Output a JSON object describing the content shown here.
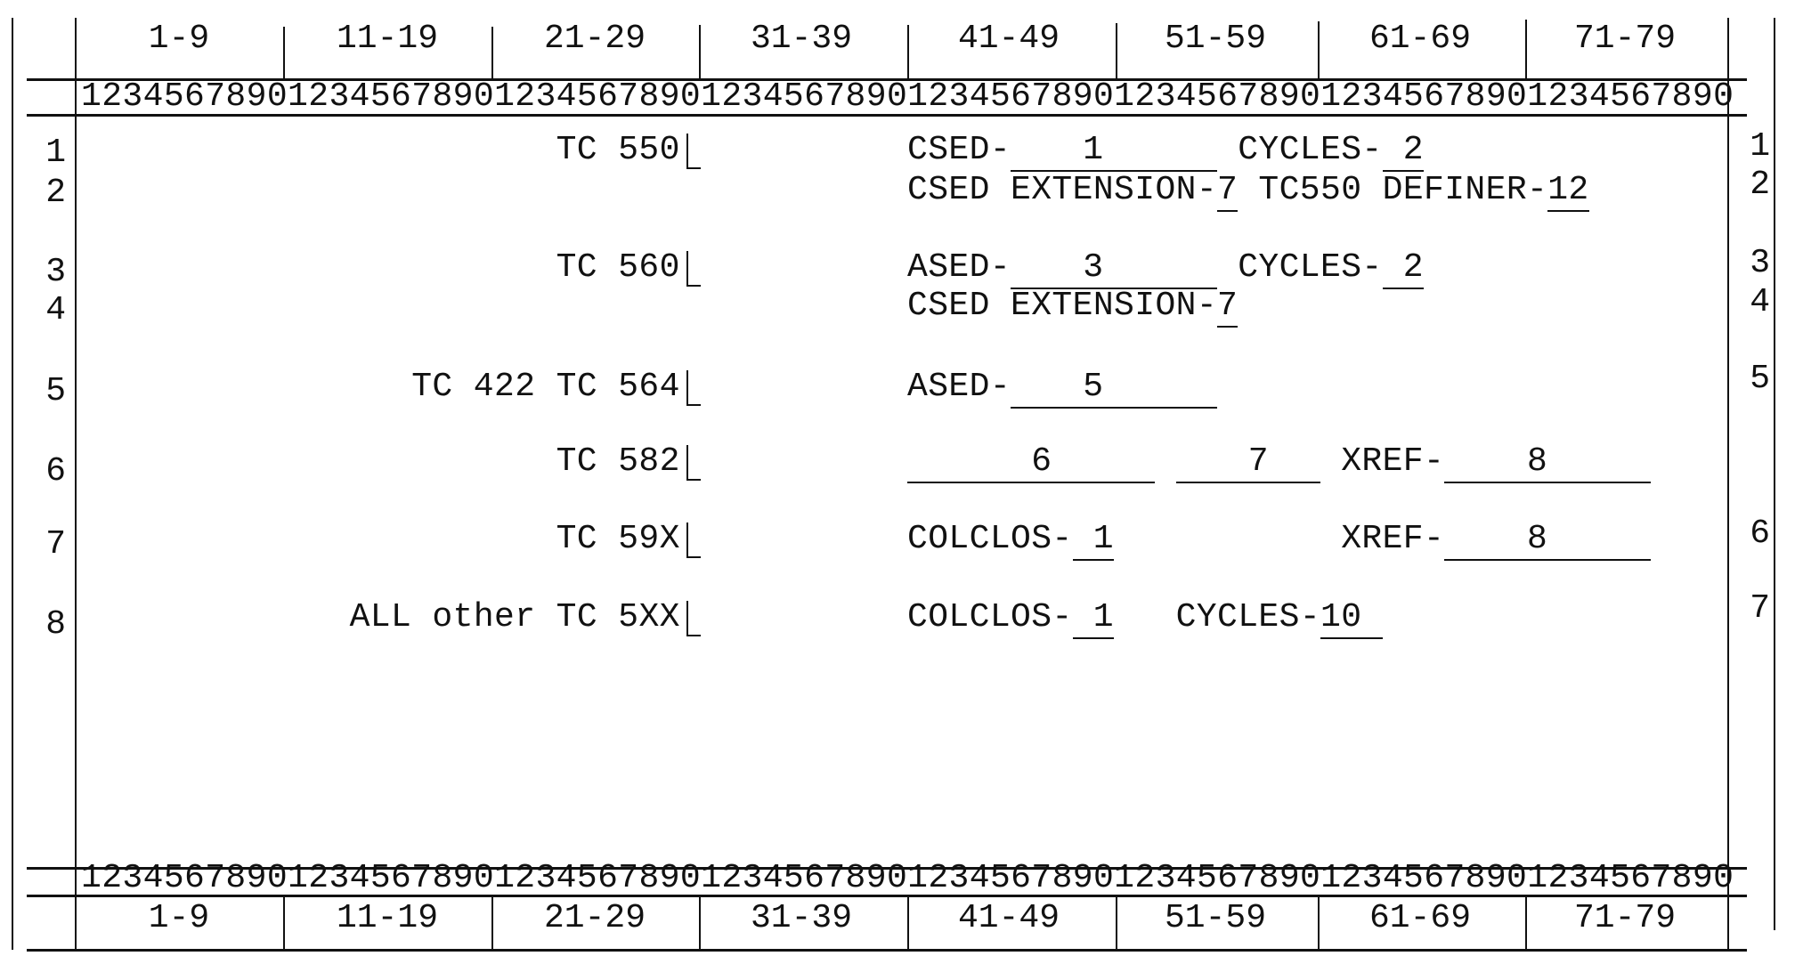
{
  "ruler": {
    "groups": [
      "1-9",
      "11-19",
      "21-29",
      "31-39",
      "41-49",
      "51-59",
      "61-69",
      "71-79"
    ],
    "digits": "12345678901234567890123456789012345678901234567890123456789012345678901234567890"
  },
  "rows": [
    {
      "left_num": "1",
      "label": "TC 550",
      "csed_label": "CSED-",
      "csed_value": "1",
      "cycles_label": "CYCLES-",
      "cycles_value": "2"
    },
    {
      "left_num": "2",
      "ext_label": "CSED EXTENSION-",
      "ext_value": "7",
      "definer_label": "TC550 DEFINER-",
      "definer_value": "12"
    },
    {
      "left_num": "3",
      "label": "TC 560",
      "ased_label": "ASED-",
      "ased_value": "3",
      "cycles_label": "CYCLES-",
      "cycles_value": "2"
    },
    {
      "left_num": "4",
      "ext_label": "CSED EXTENSION-",
      "ext_value": "7"
    },
    {
      "left_num": "5",
      "label": "TC 422 TC 564",
      "ased_label": "ASED-",
      "ased_value": "5"
    },
    {
      "left_num": "6",
      "label": "TC 582",
      "field1_value": "6",
      "field2_value": "7",
      "xref_label": "XREF-",
      "xref_value": "8"
    },
    {
      "left_num": "7",
      "label": "TC 59X",
      "colclos_label": "COLCLOS-",
      "colclos_value": "1",
      "xref_label": "XREF-",
      "xref_value": "8"
    },
    {
      "left_num": "8",
      "label": "ALL other TC 5XX",
      "colclos_label": "COLCLOS-",
      "colclos_value": "1",
      "cycles_label": "CYCLES-",
      "cycles_value": "10"
    }
  ],
  "right_numbers": [
    "1",
    "2",
    "3",
    "4",
    "5",
    "6",
    "7"
  ]
}
